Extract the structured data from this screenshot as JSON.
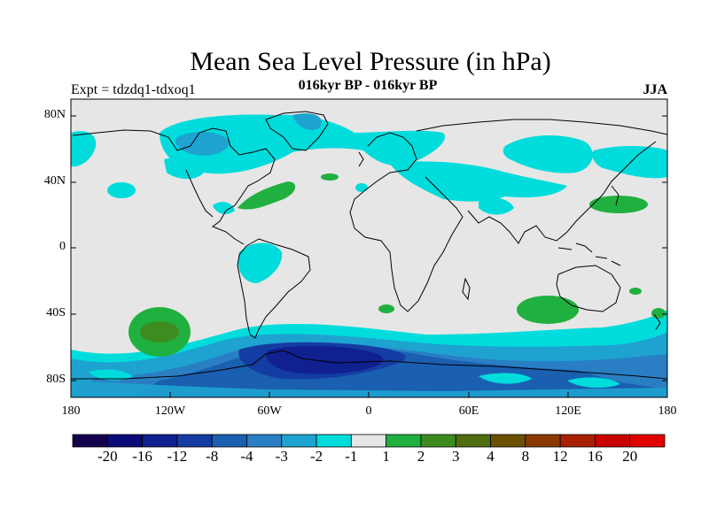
{
  "title": "Mean Sea Level Pressure (in hPa)",
  "subtitle_center": "016kyr BP - 016kyr BP",
  "subtitle_left": "Expt = tdzdq1-tdxoq1",
  "subtitle_right": "JJA",
  "axes": {
    "x_ticks": [
      "180",
      "120W",
      "60W",
      "0",
      "60E",
      "120E",
      "180"
    ],
    "y_ticks": [
      "80N",
      "40N",
      "0",
      "40S",
      "80S"
    ]
  },
  "colorbar": {
    "labels": [
      "-20",
      "-16",
      "-12",
      "-8",
      "-4",
      "-3",
      "-2",
      "-1",
      "1",
      "2",
      "3",
      "4",
      "8",
      "12",
      "16",
      "20"
    ],
    "colors": [
      "#14004d",
      "#0a0a78",
      "#10208f",
      "#143ca3",
      "#1a5fb0",
      "#2a7fc4",
      "#1ea3d0",
      "#00dcdc",
      "#e6e6e6",
      "#20b040",
      "#3c8c20",
      "#4e6e10",
      "#6a5000",
      "#8a3a00",
      "#a82000",
      "#c80000",
      "#e00000"
    ]
  },
  "colors": {
    "background": "#e6e6e6",
    "coastline": "#000000"
  }
}
